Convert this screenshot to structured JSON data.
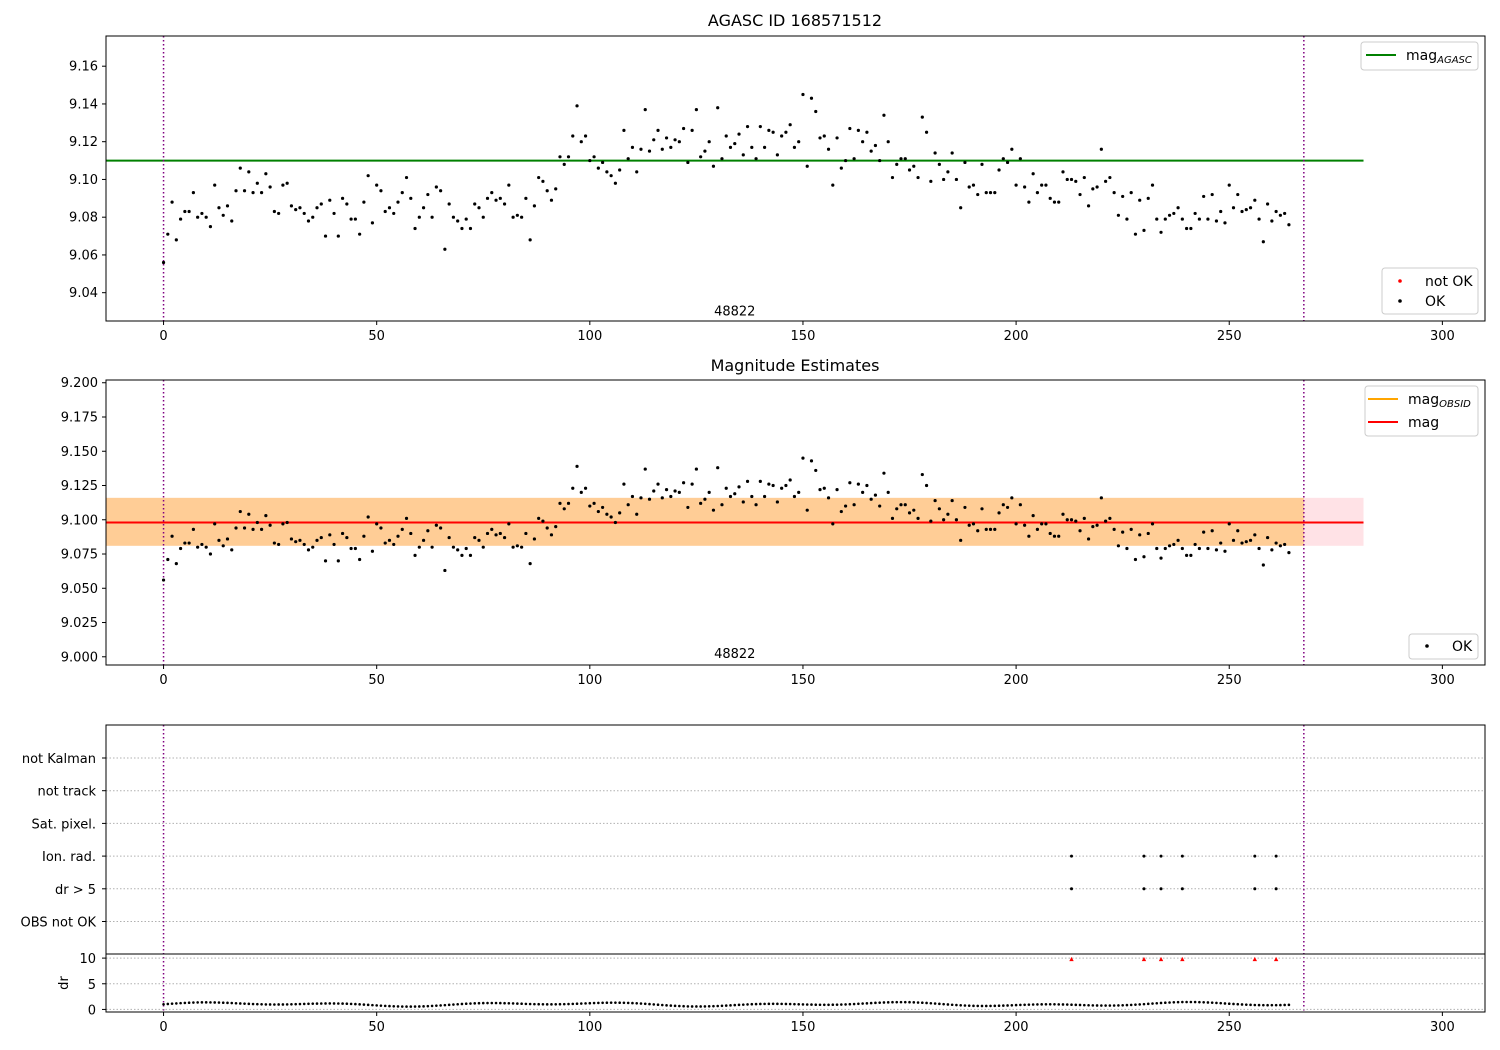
{
  "figure_title": "AGASC ID 168571512",
  "chart_data": [
    {
      "type": "scatter",
      "title": "AGASC ID 168571512",
      "xlim": [
        -13.5,
        310
      ],
      "ylim": [
        9.025,
        9.176
      ],
      "x_ticks": [
        0,
        50,
        100,
        150,
        200,
        250,
        300
      ],
      "y_ticks": [
        9.04,
        9.06,
        9.08,
        9.1,
        9.12,
        9.14,
        9.16
      ],
      "obsid_label": {
        "text": "48822",
        "x": 134,
        "y": 9.03
      },
      "vlines": [
        0,
        267.5
      ],
      "hlines": [
        {
          "name": "mag",
          "sub": "AGASC",
          "y": 9.11,
          "x_range": [
            -13.5,
            281.5
          ],
          "color": "#008000"
        }
      ],
      "legend_lines": [
        {
          "name": "mag",
          "sub": "AGASC",
          "color": "#008000"
        }
      ],
      "legend_points": [
        {
          "name": "not OK",
          "color": "#ff0000"
        },
        {
          "name": "OK",
          "color": "#000000"
        }
      ],
      "series": [
        {
          "name": "OK",
          "color": "#000000",
          "values": "mag_values"
        }
      ]
    },
    {
      "type": "scatter",
      "title": "Magnitude Estimates",
      "xlim": [
        -13.5,
        310
      ],
      "ylim": [
        8.994,
        9.202
      ],
      "x_ticks": [
        0,
        50,
        100,
        150,
        200,
        250,
        300
      ],
      "y_ticks": [
        9.0,
        9.025,
        9.05,
        9.075,
        9.1,
        9.125,
        9.15,
        9.175,
        9.2
      ],
      "obsid_label": {
        "text": "48822",
        "x": 134,
        "y": 9.002
      },
      "vlines": [
        0,
        267.5
      ],
      "band": {
        "y_range": [
          9.081,
          9.116
        ],
        "x_range": [
          -13.5,
          281.5
        ],
        "color": "#ffb6c1",
        "alpha": 0.4
      },
      "obsid_band": {
        "y_range": [
          9.081,
          9.116
        ],
        "x_range": [
          -13.5,
          267.5
        ],
        "color": "#ffa500",
        "alpha": 0.35
      },
      "hlines": [
        {
          "name": "mag",
          "sub": "OBSID",
          "y": 9.098,
          "x_range": [
            -13.5,
            267.5
          ],
          "color": "#ffa500"
        },
        {
          "name": "mag",
          "sub": "",
          "y": 9.098,
          "x_range": [
            -13.5,
            281.5
          ],
          "color": "#ff0000"
        }
      ],
      "legend_lines": [
        {
          "name": "mag",
          "sub": "OBSID",
          "color": "#ffa500"
        },
        {
          "name": "mag",
          "sub": "",
          "color": "#ff0000"
        }
      ],
      "legend_points": [
        {
          "name": "OK",
          "color": "#000000"
        }
      ],
      "series": [
        {
          "name": "OK",
          "color": "#000000",
          "values": "mag_values"
        }
      ]
    },
    {
      "type": "scatter",
      "xlim": [
        -13.5,
        310
      ],
      "flag_labels": [
        "not Kalman",
        "not track",
        "Sat. pixel.",
        "Ion. rad.",
        "dr > 5",
        "OBS not OK"
      ],
      "flags": {
        "Ion. rad.": [
          213,
          230,
          234,
          239,
          256,
          261
        ],
        "dr > 5": [
          213,
          230,
          234,
          239,
          256,
          261
        ]
      },
      "dr_ylabel": "dr",
      "dr_ylim": [
        -0.5,
        10.8
      ],
      "dr_ticks": [
        0,
        5,
        10
      ],
      "dr_high": {
        "x": [
          213,
          230,
          234,
          239,
          256,
          261
        ],
        "y": 9.8,
        "color": "#ff0000"
      },
      "dr_baseline": 1.0,
      "vlines": [
        0,
        267.5
      ],
      "x_ticks": [
        0,
        50,
        100,
        150,
        200,
        250,
        300
      ]
    }
  ],
  "mag_values": [
    9.056,
    9.071,
    9.088,
    9.068,
    9.079,
    9.083,
    9.083,
    9.093,
    9.08,
    9.082,
    9.08,
    9.075,
    9.097,
    9.085,
    9.081,
    9.086,
    9.078,
    9.094,
    9.106,
    9.094,
    9.104,
    9.093,
    9.098,
    9.093,
    9.103,
    9.096,
    9.083,
    9.082,
    9.097,
    9.098,
    9.086,
    9.084,
    9.085,
    9.082,
    9.078,
    9.08,
    9.085,
    9.087,
    9.07,
    9.089,
    9.082,
    9.07,
    9.09,
    9.087,
    9.079,
    9.079,
    9.071,
    9.088,
    9.102,
    9.077,
    9.097,
    9.094,
    9.083,
    9.085,
    9.082,
    9.088,
    9.093,
    9.101,
    9.09,
    9.074,
    9.08,
    9.085,
    9.092,
    9.08,
    9.096,
    9.094,
    9.063,
    9.087,
    9.08,
    9.078,
    9.074,
    9.079,
    9.074,
    9.087,
    9.085,
    9.08,
    9.09,
    9.093,
    9.089,
    9.09,
    9.087,
    9.097,
    9.08,
    9.081,
    9.08,
    9.09,
    9.068,
    9.086,
    9.101,
    9.099,
    9.094,
    9.089,
    9.095,
    9.112,
    9.108,
    9.112,
    9.123,
    9.139,
    9.12,
    9.123,
    9.11,
    9.112,
    9.106,
    9.109,
    9.104,
    9.102,
    9.098,
    9.105,
    9.126,
    9.111,
    9.117,
    9.104,
    9.116,
    9.137,
    9.115,
    9.121,
    9.126,
    9.116,
    9.122,
    9.117,
    9.121,
    9.12,
    9.127,
    9.109,
    9.126,
    9.137,
    9.112,
    9.115,
    9.12,
    9.107,
    9.138,
    9.111,
    9.123,
    9.117,
    9.119,
    9.124,
    9.113,
    9.128,
    9.117,
    9.111,
    9.128,
    9.117,
    9.126,
    9.125,
    9.113,
    9.123,
    9.125,
    9.129,
    9.117,
    9.12,
    9.145,
    9.107,
    9.143,
    9.136,
    9.122,
    9.123,
    9.116,
    9.097,
    9.122,
    9.106,
    9.11,
    9.127,
    9.111,
    9.126,
    9.12,
    9.125,
    9.115,
    9.118,
    9.11,
    9.134,
    9.12,
    9.101,
    9.108,
    9.111,
    9.111,
    9.105,
    9.107,
    9.101,
    9.133,
    9.125,
    9.099,
    9.114,
    9.108,
    9.1,
    9.104,
    9.114,
    9.1,
    9.085,
    9.109,
    9.096,
    9.097,
    9.092,
    9.108,
    9.093,
    9.093,
    9.093,
    9.105,
    9.111,
    9.109,
    9.116,
    9.097,
    9.111,
    9.096,
    9.088,
    9.103,
    9.093,
    9.097,
    9.097,
    9.09,
    9.088,
    9.088,
    9.104,
    9.1,
    9.1,
    9.099,
    9.092,
    9.101,
    9.086,
    9.095,
    9.096,
    9.116,
    9.099,
    9.101,
    9.093,
    9.081,
    9.091,
    9.079,
    9.093,
    9.071,
    9.089,
    9.073,
    9.09,
    9.097,
    9.079,
    9.072,
    9.079,
    9.081,
    9.082,
    9.085,
    9.079,
    9.074,
    9.074,
    9.082,
    9.079,
    9.091,
    9.079,
    9.092,
    9.078,
    9.083,
    9.077,
    9.097,
    9.085,
    9.092,
    9.083,
    9.084,
    9.085,
    9.089,
    9.079,
    9.067,
    9.087,
    9.078,
    9.083,
    9.081,
    9.082,
    9.076
  ],
  "dr_values_note_free": true
}
